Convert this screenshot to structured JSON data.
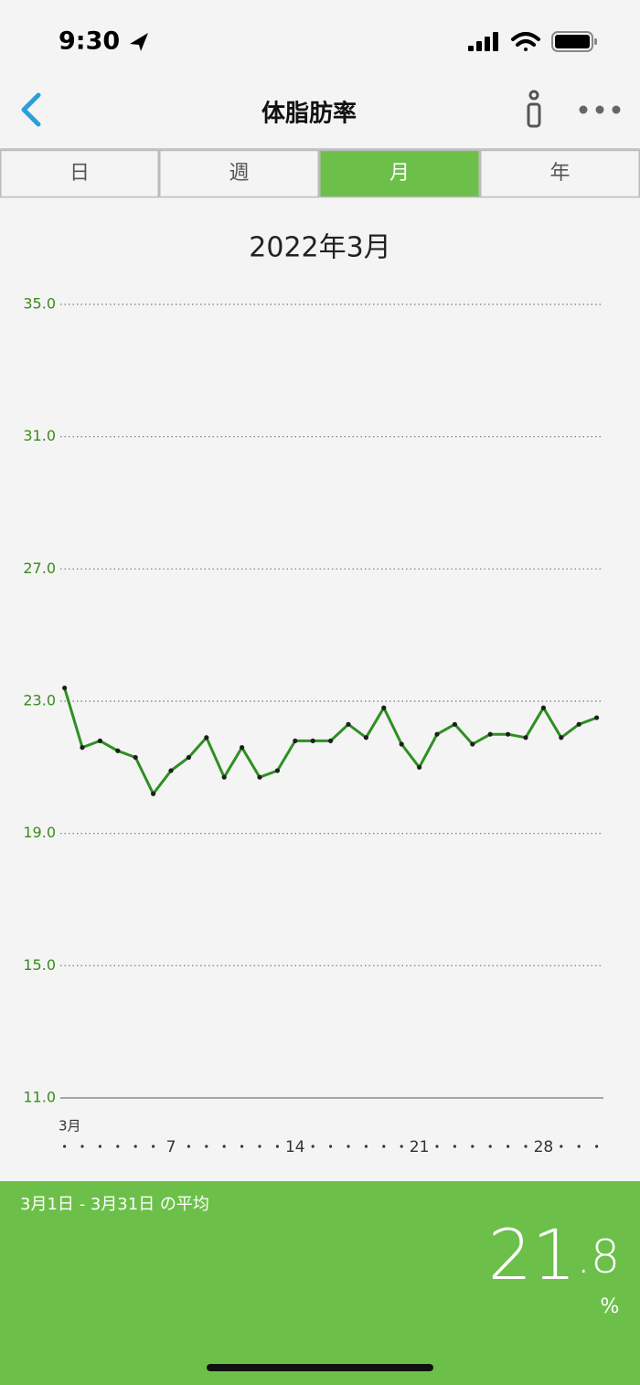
{
  "status_bar": {
    "time": "9:30"
  },
  "header": {
    "title": "体脂肪率"
  },
  "tabs": [
    {
      "label": "日",
      "selected": false
    },
    {
      "label": "週",
      "selected": false
    },
    {
      "label": "月",
      "selected": true
    },
    {
      "label": "年",
      "selected": false
    }
  ],
  "period_title": "2022年3月",
  "chart_data": {
    "type": "line",
    "color": "#2e8f22",
    "point_color": "#1e1e1e",
    "grid": true,
    "ylim": [
      11,
      35
    ],
    "yticks": [
      {
        "value": 11,
        "label": "11.0"
      },
      {
        "value": 15,
        "label": "15.0"
      },
      {
        "value": 19,
        "label": "19.0"
      },
      {
        "value": 23,
        "label": "23.0"
      },
      {
        "value": 27,
        "label": "27.0"
      },
      {
        "value": 31,
        "label": "31.0"
      },
      {
        "value": 35,
        "label": "35.0"
      }
    ],
    "month_label": "3月",
    "categories": [
      null,
      null,
      null,
      null,
      null,
      null,
      "7",
      null,
      null,
      null,
      null,
      null,
      null,
      "14",
      null,
      null,
      null,
      null,
      null,
      null,
      "21",
      null,
      null,
      null,
      null,
      null,
      null,
      "28",
      null,
      null,
      null
    ],
    "values": [
      23.4,
      21.6,
      21.8,
      21.5,
      21.3,
      20.2,
      20.9,
      21.3,
      21.9,
      20.7,
      21.6,
      20.7,
      20.9,
      21.8,
      21.8,
      21.8,
      22.3,
      21.9,
      22.8,
      21.7,
      21.0,
      22.0,
      22.3,
      21.7,
      22.0,
      22.0,
      21.9,
      22.8,
      21.9,
      22.3,
      22.5
    ]
  },
  "summary": {
    "label": "3月1日 - 3月31日 の平均",
    "integer": "21",
    "decimal": ".8",
    "unit": "%"
  }
}
